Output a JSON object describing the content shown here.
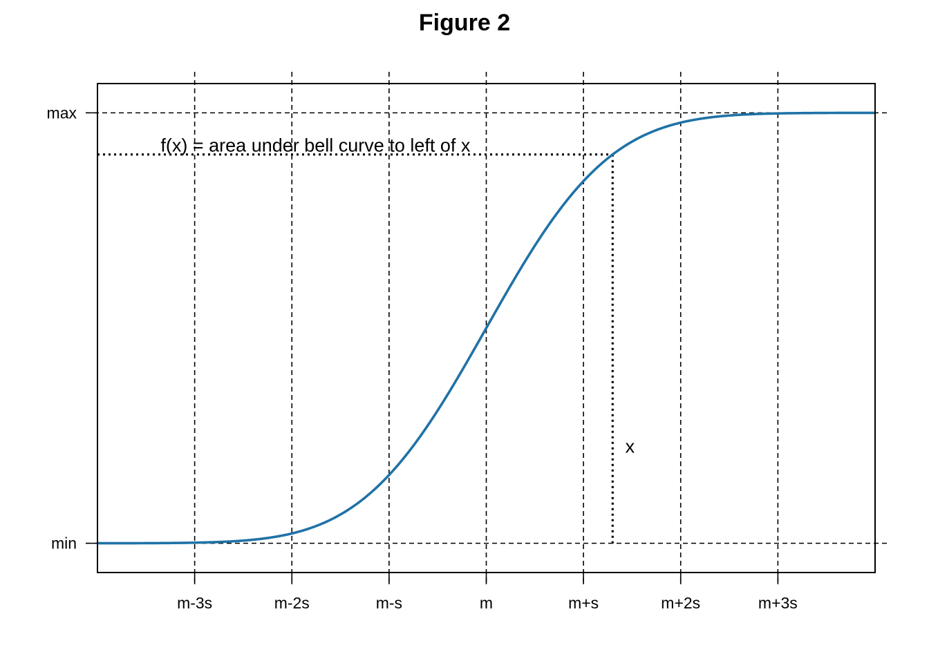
{
  "chart_data": {
    "type": "line",
    "title": "Figure 2",
    "xlabel": "",
    "ylabel": "",
    "xlim": [
      -4,
      4
    ],
    "ylim": [
      -0.068,
      1.068
    ],
    "x_ticks": [
      {
        "value": -3,
        "label": "m-3s"
      },
      {
        "value": -2,
        "label": "m-2s"
      },
      {
        "value": -1,
        "label": "m-s"
      },
      {
        "value": 0,
        "label": "m"
      },
      {
        "value": 1,
        "label": "m+s"
      },
      {
        "value": 2,
        "label": "m+2s"
      },
      {
        "value": 3,
        "label": "m+3s"
      }
    ],
    "y_ticks": [
      {
        "value": 0,
        "label": "min"
      },
      {
        "value": 1,
        "label": "max"
      }
    ],
    "grid": true,
    "series": [
      {
        "function": "normal_cdf",
        "mean": 0,
        "sd": 1,
        "x_range": [
          -4,
          4
        ],
        "color": "#1f72a6"
      }
    ],
    "annotations": [
      {
        "text": "f(x) = area under bell curve to left of x",
        "anchor_x": -3.35,
        "anchor_y": 0.91
      },
      {
        "text": "x",
        "anchor_x": 1.43,
        "anchor_y": 0.21
      }
    ],
    "guide_point": {
      "x": 1.3,
      "y": 0.9032
    }
  }
}
